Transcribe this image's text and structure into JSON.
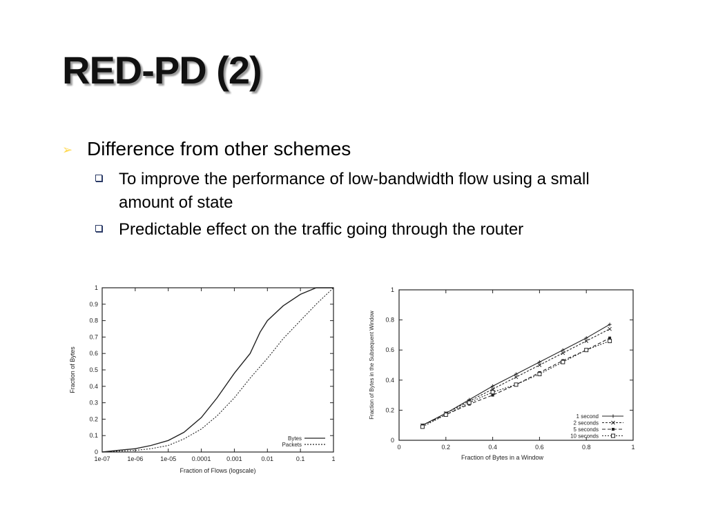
{
  "slide": {
    "title": "RED-PD (2)",
    "bullet": "Difference from other schemes",
    "sub_bullets": [
      "To improve the performance of low-bandwidth flow using a small amount of state",
      "Predictable effect on the traffic going through the router"
    ]
  },
  "chart_data": [
    {
      "type": "line",
      "xlabel": "Fraction of Flows (logscale)",
      "ylabel": "Fraction of Bytes",
      "xscale": "log",
      "xlim": [
        1e-07,
        1
      ],
      "ylim": [
        0,
        1
      ],
      "xticks": [
        "1e-07",
        "1e-06",
        "1e-05",
        "0.0001",
        "0.001",
        "0.01",
        "0.1",
        "1"
      ],
      "yticks": [
        "0",
        "0.1",
        "0.2",
        "0.3",
        "0.4",
        "0.5",
        "0.6",
        "0.7",
        "0.8",
        "0.9",
        "1"
      ],
      "legend_position": "bottom-right",
      "grid": false,
      "series": [
        {
          "name": "Bytes",
          "style": "solid",
          "points": [
            [
              1e-07,
              0.0
            ],
            [
              3e-07,
              0.01
            ],
            [
              1e-06,
              0.02
            ],
            [
              3e-06,
              0.04
            ],
            [
              1e-05,
              0.07
            ],
            [
              3e-05,
              0.12
            ],
            [
              0.0001,
              0.21
            ],
            [
              0.0003,
              0.33
            ],
            [
              0.001,
              0.48
            ],
            [
              0.003,
              0.6
            ],
            [
              0.006,
              0.73
            ],
            [
              0.01,
              0.8
            ],
            [
              0.03,
              0.89
            ],
            [
              0.1,
              0.96
            ],
            [
              0.3,
              1.0
            ],
            [
              1,
              1.0
            ]
          ]
        },
        {
          "name": "Packets",
          "style": "dotted",
          "points": [
            [
              1e-07,
              0.0
            ],
            [
              3e-07,
              0.005
            ],
            [
              1e-06,
              0.01
            ],
            [
              3e-06,
              0.02
            ],
            [
              1e-05,
              0.04
            ],
            [
              3e-05,
              0.08
            ],
            [
              0.0001,
              0.14
            ],
            [
              0.0003,
              0.22
            ],
            [
              0.001,
              0.33
            ],
            [
              0.003,
              0.45
            ],
            [
              0.01,
              0.57
            ],
            [
              0.03,
              0.69
            ],
            [
              0.1,
              0.8
            ],
            [
              0.3,
              0.9
            ],
            [
              1,
              1.0
            ]
          ]
        }
      ]
    },
    {
      "type": "line",
      "xlabel": "Fraction of Bytes in a Window",
      "ylabel": "Fraction of Bytes in the Subsequent Window",
      "xlim": [
        0,
        1
      ],
      "ylim": [
        0,
        1
      ],
      "xticks": [
        "0",
        "0.2",
        "0.4",
        "0.6",
        "0.8",
        "1"
      ],
      "yticks": [
        "0",
        "0.2",
        "0.4",
        "0.6",
        "0.8",
        "1"
      ],
      "legend_position": "bottom-right",
      "grid": false,
      "series": [
        {
          "name": "1 second",
          "marker": "+",
          "x": [
            0.1,
            0.2,
            0.3,
            0.4,
            0.5,
            0.6,
            0.7,
            0.8,
            0.9
          ],
          "y": [
            0.1,
            0.18,
            0.27,
            0.36,
            0.44,
            0.52,
            0.6,
            0.68,
            0.77
          ]
        },
        {
          "name": "2 seconds",
          "marker": "x",
          "x": [
            0.1,
            0.2,
            0.3,
            0.4,
            0.5,
            0.6,
            0.7,
            0.8,
            0.9
          ],
          "y": [
            0.1,
            0.18,
            0.26,
            0.34,
            0.42,
            0.5,
            0.58,
            0.66,
            0.74
          ]
        },
        {
          "name": "5 seconds",
          "marker": "*",
          "x": [
            0.1,
            0.2,
            0.3,
            0.4,
            0.5,
            0.6,
            0.7,
            0.8,
            0.9
          ],
          "y": [
            0.1,
            0.17,
            0.24,
            0.3,
            0.37,
            0.45,
            0.53,
            0.6,
            0.68
          ]
        },
        {
          "name": "10 seconds",
          "marker": "square",
          "x": [
            0.1,
            0.2,
            0.3,
            0.4,
            0.5,
            0.6,
            0.7,
            0.8,
            0.9
          ],
          "y": [
            0.09,
            0.17,
            0.25,
            0.32,
            0.37,
            0.44,
            0.52,
            0.6,
            0.66
          ]
        }
      ]
    }
  ]
}
